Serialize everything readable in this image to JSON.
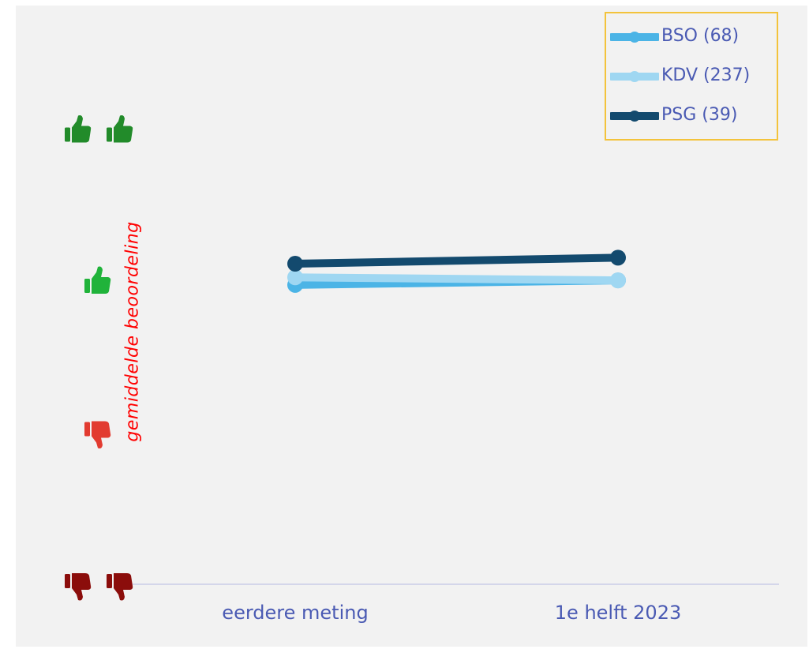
{
  "chart_data": {
    "type": "line",
    "categories": [
      "eerdere meting",
      "1e helft 2023"
    ],
    "ylabel": "gemiddelde beoordeling",
    "xlabel": "",
    "ylim": [
      0,
      4
    ],
    "y_tick_icons": [
      {
        "value": 0,
        "icon": "double-thumbs-down-icon",
        "color": "#8b0d0b"
      },
      {
        "value": 1,
        "icon": "thumbs-down-icon",
        "color": "#e23b30"
      },
      {
        "value": 2,
        "icon": "thumbs-up-icon",
        "color": "#20b33a"
      },
      {
        "value": 3,
        "icon": "double-thumbs-up-icon",
        "color": "#228b2a"
      }
    ],
    "series": [
      {
        "name": "BSO (68)",
        "values": [
          1.98,
          2.01
        ],
        "color": "#4bb4e6"
      },
      {
        "name": "KDV (237)",
        "values": [
          2.03,
          2.01
        ],
        "color": "#9fd7f2"
      },
      {
        "name": "PSG (39)",
        "values": [
          2.12,
          2.16
        ],
        "color": "#134a6e"
      }
    ],
    "grid": false,
    "legend_position": "top-right"
  }
}
